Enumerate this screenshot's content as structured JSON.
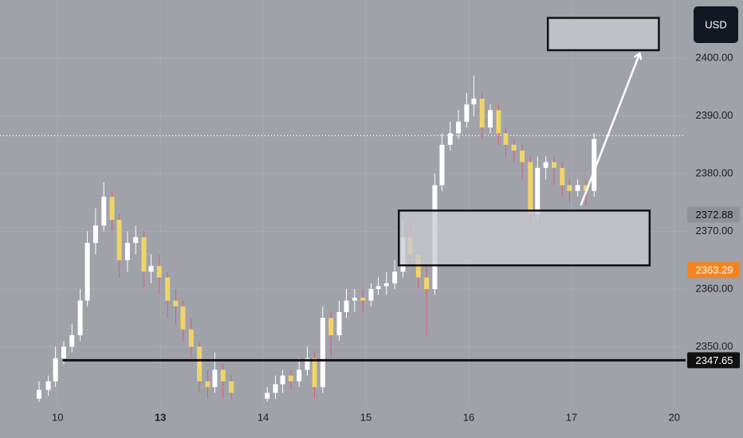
{
  "chart_data": {
    "type": "candlestick",
    "x": [
      -0.18,
      -0.09,
      -0.02,
      0.06,
      0.14,
      0.22,
      0.29,
      0.37,
      0.45,
      0.53,
      0.6,
      0.68,
      0.76,
      0.84,
      0.91,
      0.99,
      1.07,
      1.15,
      1.22,
      1.3,
      1.38,
      1.46,
      1.53,
      1.61,
      1.69,
      2.04,
      2.12,
      2.19,
      2.27,
      2.35,
      2.43,
      2.5,
      2.58,
      2.66,
      2.74,
      2.81,
      2.89,
      2.97,
      3.05,
      3.12,
      3.2,
      3.28,
      3.36,
      3.43,
      3.51,
      3.59,
      3.67,
      3.74,
      3.82,
      3.9,
      3.98,
      4.05,
      4.13,
      4.21,
      4.29,
      4.36,
      4.44,
      4.52,
      4.6,
      4.67,
      4.75,
      4.83,
      4.91,
      4.98,
      5.06,
      5.14,
      5.22
    ],
    "open": [
      2341,
      2342.5,
      2344,
      2348,
      2350,
      2352,
      2358,
      2368,
      2371,
      2376,
      2372,
      2365,
      2368,
      2369,
      2363,
      2364,
      2362,
      2358,
      2357,
      2353,
      2350,
      2344,
      2343,
      2346,
      2344,
      2341,
      2342,
      2343.5,
      2345,
      2344,
      2346,
      2348,
      2343,
      2355,
      2352,
      2356,
      2358,
      2358.5,
      2358,
      2360,
      2360.5,
      2361,
      2363,
      2369,
      2366,
      2362,
      2360,
      2378,
      2385,
      2387,
      2389,
      2392,
      2393,
      2388,
      2391,
      2387,
      2385,
      2384,
      2382,
      2373,
      2381,
      2382,
      2381,
      2378,
      2377,
      2378,
      2377
    ],
    "high": [
      2344,
      2345,
      2350,
      2351,
      2354,
      2360,
      2370,
      2374,
      2378.5,
      2377,
      2373,
      2370,
      2371,
      2370,
      2366,
      2366,
      2363,
      2360,
      2358,
      2355,
      2351,
      2346,
      2349,
      2347,
      2345,
      2343,
      2345,
      2346,
      2346,
      2348,
      2350,
      2349,
      2357,
      2356,
      2358,
      2360,
      2360,
      2360,
      2361,
      2362,
      2363,
      2365,
      2372,
      2372,
      2367,
      2364,
      2380,
      2387,
      2389,
      2391,
      2394,
      2397,
      2394,
      2392,
      2392,
      2388,
      2386,
      2385,
      2383,
      2383,
      2383,
      2383,
      2382,
      2379,
      2379,
      2379,
      2387
    ],
    "low": [
      2340.5,
      2341.5,
      2343,
      2347,
      2349,
      2351,
      2357,
      2366,
      2370,
      2370,
      2362,
      2363,
      2366,
      2360,
      2361,
      2359,
      2355,
      2354,
      2351,
      2348,
      2342,
      2341,
      2342,
      2341,
      2341,
      2340.5,
      2341,
      2342,
      2342.5,
      2343,
      2345,
      2341,
      2342,
      2348,
      2351,
      2355,
      2356,
      2356,
      2357,
      2359,
      2359,
      2360,
      2362,
      2364,
      2360,
      2352,
      2359,
      2377,
      2384,
      2386,
      2388,
      2390,
      2386,
      2387,
      2385,
      2383,
      2382,
      2379,
      2371,
      2372,
      2379,
      2378,
      2376,
      2375,
      2376,
      2374.5,
      2376
    ],
    "close": [
      2342.5,
      2344,
      2348,
      2350,
      2352,
      2358,
      2368,
      2371,
      2376,
      2372,
      2365,
      2368,
      2369,
      2363,
      2364,
      2362,
      2358,
      2357,
      2353,
      2350,
      2344,
      2343,
      2346,
      2344,
      2342,
      2342,
      2343.5,
      2345,
      2344,
      2346,
      2348,
      2343,
      2355,
      2352,
      2356,
      2358,
      2358.5,
      2358,
      2360,
      2360.5,
      2361,
      2363,
      2369,
      2366,
      2362,
      2360,
      2378,
      2385,
      2387,
      2389,
      2392,
      2393,
      2388,
      2391,
      2387,
      2385,
      2384,
      2382,
      2373,
      2381,
      2382,
      2381,
      2378,
      2377,
      2378,
      2377,
      2386
    ],
    "up_color": "#ffffff",
    "down_color": "#f0d468",
    "wick_up_color": "#ffffff",
    "wick_down_color": "#e0577b",
    "xlim": [
      -0.56,
      6.11
    ],
    "ylim": [
      2339.7,
      2410.1
    ],
    "xticks": [
      {
        "value": 0,
        "label": "10"
      },
      {
        "value": 1,
        "label": "13"
      },
      {
        "value": 2,
        "label": "14"
      },
      {
        "value": 3,
        "label": "15"
      },
      {
        "value": 4,
        "label": "16"
      },
      {
        "value": 5,
        "label": "17"
      },
      {
        "value": 6,
        "label": "20"
      }
    ],
    "yticks": [
      {
        "value": 2350,
        "label": "2350.00"
      },
      {
        "value": 2360,
        "label": "2360.00"
      },
      {
        "value": 2370,
        "label": "2370.00"
      },
      {
        "value": 2380,
        "label": "2380.00"
      },
      {
        "value": 2390,
        "label": "2390.00"
      },
      {
        "value": 2400,
        "label": "2400.00"
      }
    ],
    "currency": "USD",
    "last_price_line": 2386.6,
    "price_tags": [
      {
        "value": 2372.88,
        "color": "#8f9199",
        "text_color": "#111111"
      },
      {
        "value": 2363.29,
        "color": "#f5841f",
        "text_color": "#ffffff"
      },
      {
        "value": 2347.65,
        "color": "#111111",
        "text_color": "#ffffff",
        "line_start_x": 0.05
      }
    ],
    "zones": [
      {
        "x": [
          3.32,
          5.76
        ],
        "y": [
          2364.1,
          2373.6
        ]
      },
      {
        "x": [
          4.77,
          5.85
        ],
        "y": [
          2401.4,
          2407.0
        ]
      }
    ],
    "arrow": {
      "x": [
        5.09,
        5.66
      ],
      "y": [
        2374.5,
        2400.7
      ]
    }
  }
}
